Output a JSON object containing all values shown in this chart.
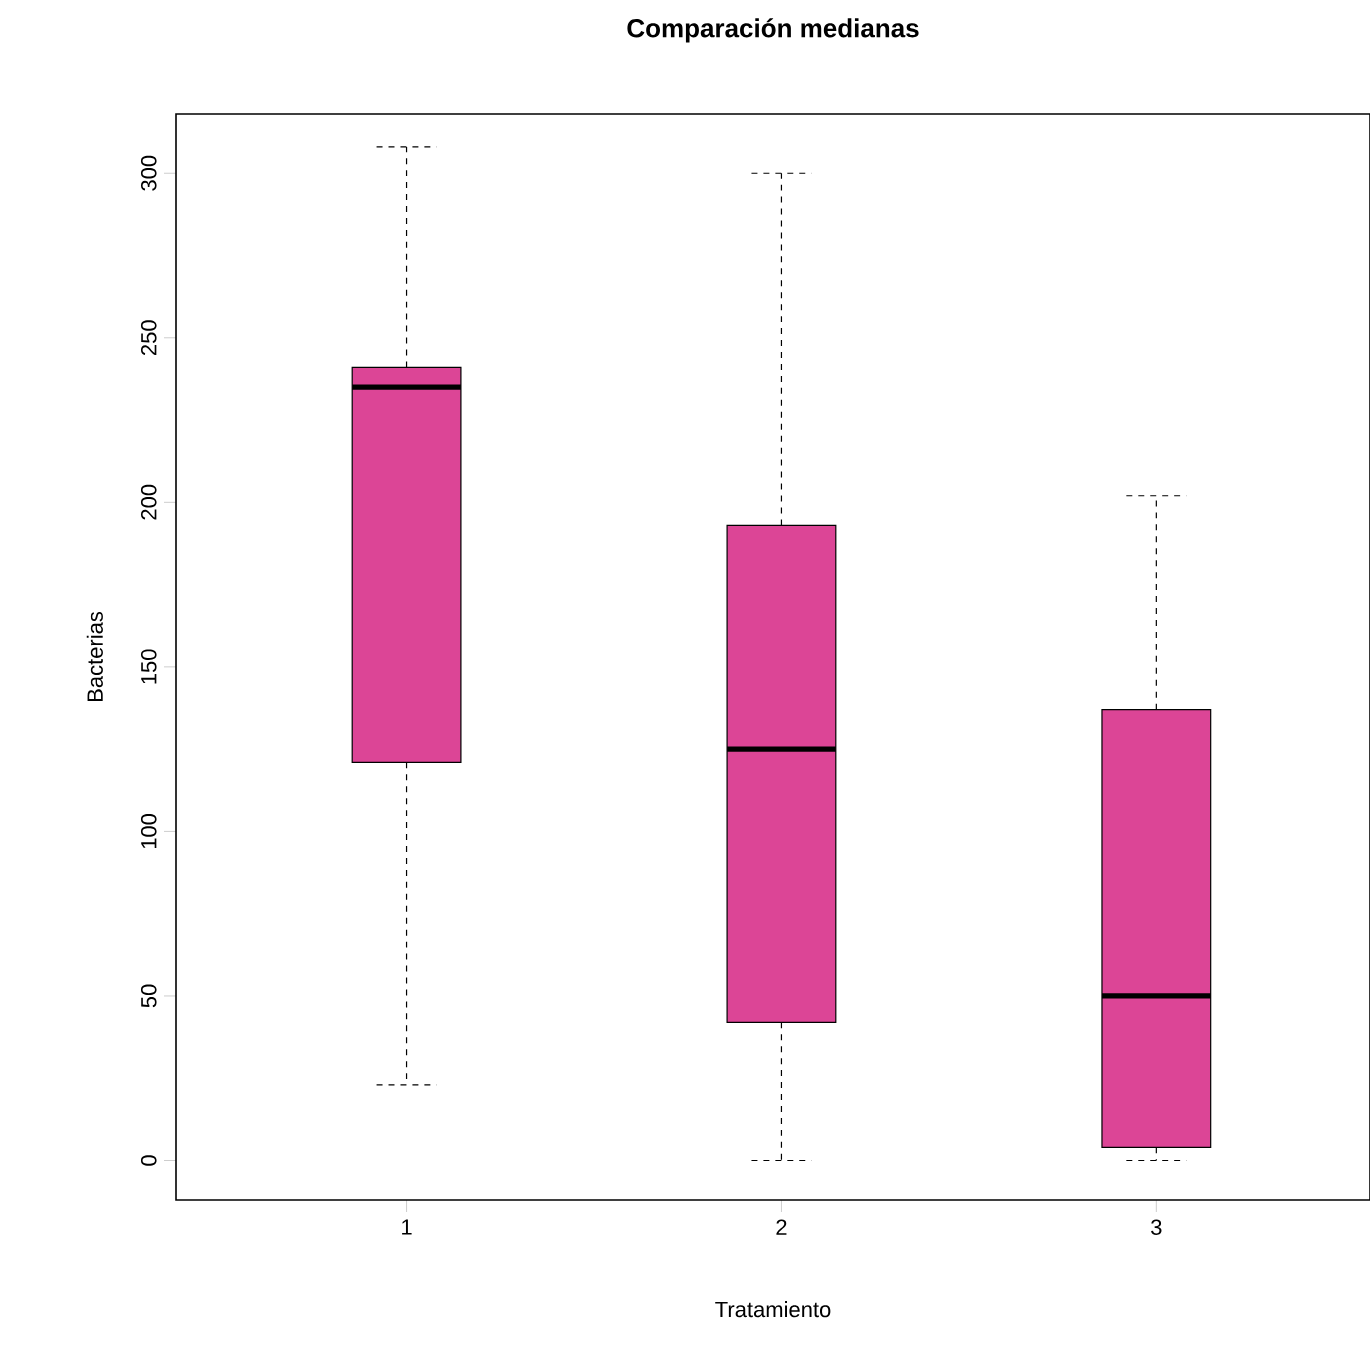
{
  "chart_data": {
    "type": "box",
    "title": "Comparación medianas",
    "xlabel": "Tratamiento",
    "ylabel": "Bacterias",
    "categories": [
      "1",
      "2",
      "3"
    ],
    "color": "#dc4596",
    "boxes": [
      {
        "low": 23,
        "q1": 121,
        "median": 235,
        "q3": 241,
        "high": 308
      },
      {
        "low": 0,
        "q1": 42,
        "median": 125,
        "q3": 193,
        "high": 300
      },
      {
        "low": 0,
        "q1": 4,
        "median": 50,
        "q3": 137,
        "high": 202
      }
    ],
    "ylim": [
      -12,
      318
    ],
    "yticks": [
      0,
      50,
      100,
      150,
      200,
      250,
      300
    ]
  }
}
